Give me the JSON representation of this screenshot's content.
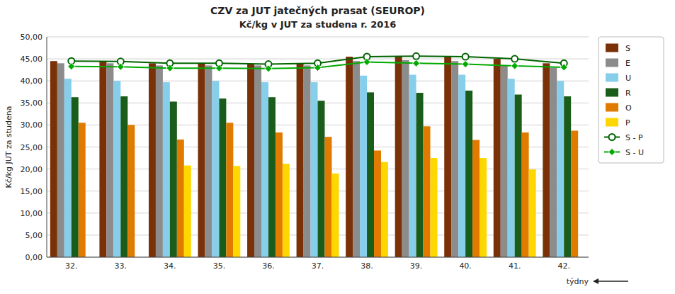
{
  "chart_data": {
    "type": "bar",
    "title": "CZV za JUT jatečných prasat (SEUROP)",
    "subtitle": "Kč/kg v JUT za studena r. 2016",
    "x_label": "týdny",
    "y_label": "Kč/kg JUT za studena",
    "categories": [
      "32.",
      "33.",
      "34.",
      "35.",
      "36.",
      "37.",
      "38.",
      "39.",
      "40.",
      "41.",
      "42."
    ],
    "series": [
      {
        "name": "S",
        "color": "#7B3108",
        "values": [
          44.5,
          44.4,
          44.0,
          44.0,
          43.8,
          44.0,
          45.5,
          45.6,
          45.5,
          45.0,
          44.0
        ]
      },
      {
        "name": "E",
        "color": "#8C8C8C",
        "values": [
          44.0,
          44.0,
          43.5,
          43.5,
          43.5,
          43.5,
          44.5,
          44.7,
          44.5,
          43.5,
          43.0
        ]
      },
      {
        "name": "U",
        "color": "#87CEEB",
        "values": [
          40.5,
          40.0,
          39.7,
          40.0,
          39.7,
          39.7,
          41.2,
          41.4,
          41.4,
          40.5,
          40.0
        ]
      },
      {
        "name": "R",
        "color": "#1A5C1A",
        "values": [
          36.3,
          36.5,
          35.3,
          36.0,
          36.3,
          35.5,
          37.4,
          37.3,
          37.8,
          36.9,
          36.5
        ]
      },
      {
        "name": "O",
        "color": "#E07B00",
        "values": [
          30.5,
          30.0,
          26.7,
          30.5,
          28.3,
          27.3,
          24.2,
          29.7,
          26.6,
          28.3,
          28.7
        ]
      },
      {
        "name": "P",
        "color": "#FFD700",
        "values": [
          0.0,
          0.0,
          20.8,
          20.7,
          21.2,
          19.0,
          21.6,
          22.5,
          22.5,
          19.9,
          0.0
        ]
      },
      {
        "name": "S - P",
        "type": "line",
        "color": "#006400",
        "marker": "circle",
        "values": [
          44.5,
          44.4,
          44.0,
          44.0,
          43.8,
          44.0,
          45.5,
          45.6,
          45.5,
          45.0,
          44.0
        ]
      },
      {
        "name": "S - U",
        "type": "line",
        "color": "#00AA00",
        "marker": "diamond",
        "values": [
          43.3,
          43.2,
          42.9,
          42.9,
          42.8,
          43.0,
          44.3,
          44.0,
          43.8,
          43.4,
          43.1
        ]
      }
    ],
    "ylim": [
      0,
      50
    ],
    "yticks": [
      {
        "value": 0,
        "label": "0,00"
      },
      {
        "value": 5.0,
        "label": "5,00"
      },
      {
        "value": 10.0,
        "label": "10,00"
      },
      {
        "value": 15.0,
        "label": "15,00"
      },
      {
        "value": 20.0,
        "label": "20,00"
      },
      {
        "value": 25.0,
        "label": "25,00"
      },
      {
        "value": 30.0,
        "label": "30,00"
      },
      {
        "value": 35.0,
        "label": "35,00"
      },
      {
        "value": 40.0,
        "label": "40,00"
      },
      {
        "value": 45.0,
        "label": "45,00"
      },
      {
        "value": 50.0,
        "label": "50,00"
      }
    ],
    "grid": true,
    "legend": "right"
  }
}
